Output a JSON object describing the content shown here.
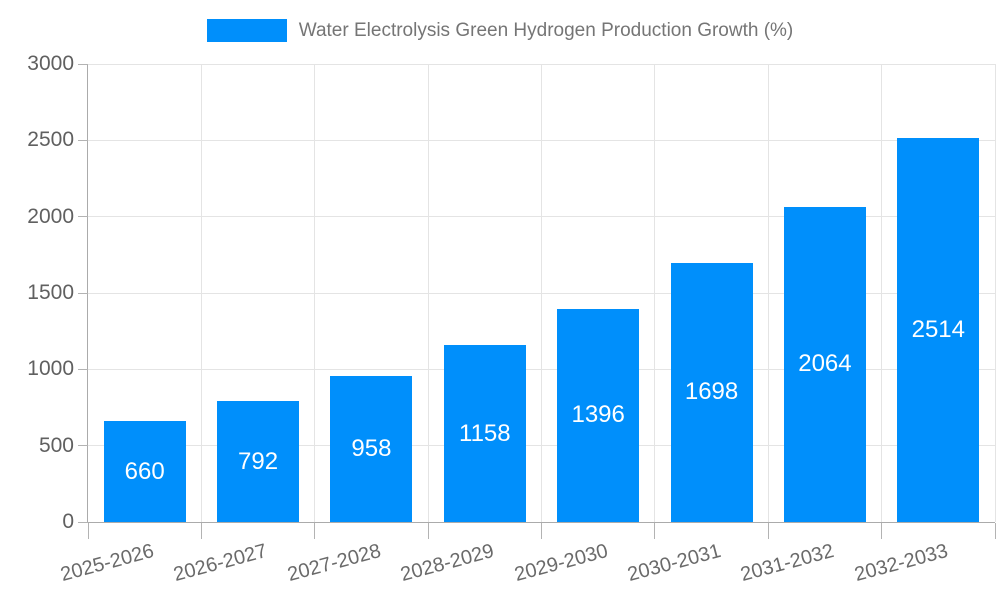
{
  "legend": {
    "label": "Water Electrolysis Green Hydrogen Production Growth (%)",
    "marker_color": "#008FFB"
  },
  "chart_data": {
    "type": "bar",
    "title": "Water Electrolysis Green Hydrogen Production Growth (%)",
    "categories": [
      "2025-2026",
      "2026-2027",
      "2027-2028",
      "2028-2029",
      "2029-2030",
      "2030-2031",
      "2031-2032",
      "2032-2033"
    ],
    "series": [
      {
        "name": "Water Electrolysis Green Hydrogen Production Growth (%)",
        "values": [
          660,
          792,
          958,
          1158,
          1396,
          1698,
          2064,
          2514
        ]
      }
    ],
    "value_labels_shown": true,
    "xlabel": "",
    "ylabel": "",
    "ylim": [
      0,
      3000
    ],
    "yticks": [
      0,
      500,
      1000,
      1500,
      2000,
      2500,
      3000
    ],
    "grid": true,
    "legend_position": "top",
    "colors": {
      "bar": "#008FFB",
      "bar_label": "#ffffff",
      "axis_text": "#606060",
      "legend_text": "#757575",
      "gridline": "#e4e4e4",
      "axis_line": "#ababab"
    }
  }
}
